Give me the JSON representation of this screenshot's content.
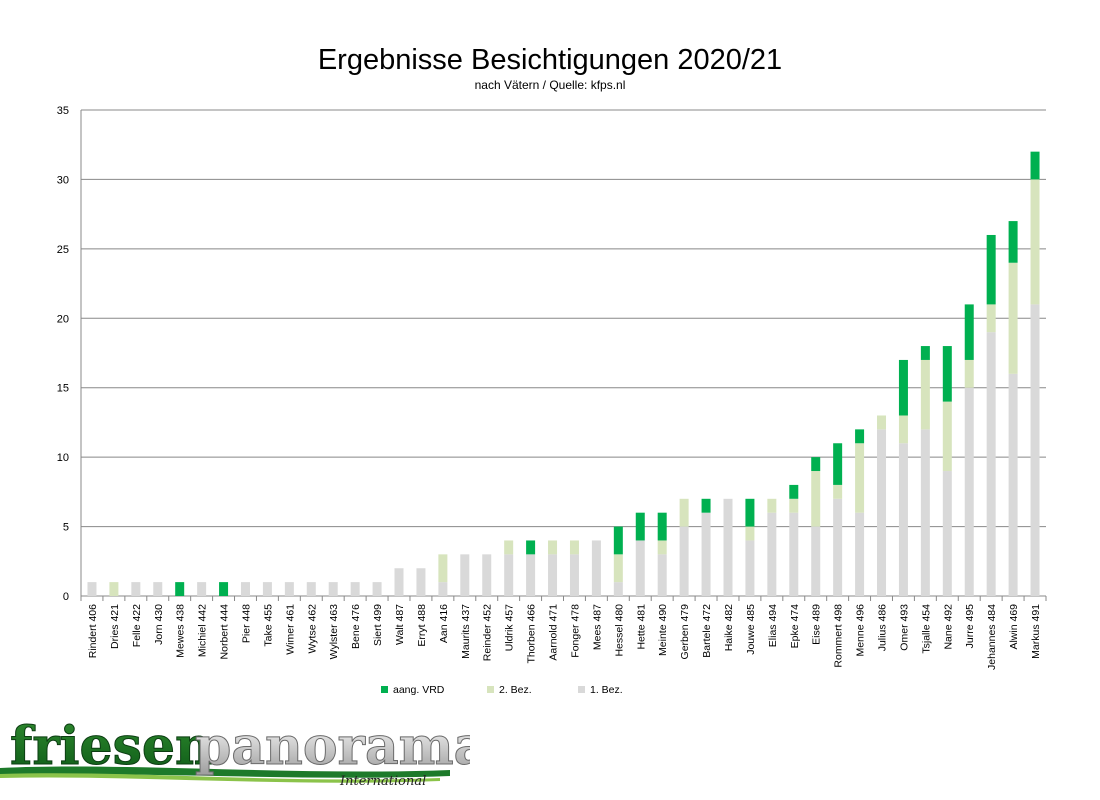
{
  "chart_data": {
    "type": "bar",
    "stacked": true,
    "title": "Ergebnisse Besichtigungen 2020/21",
    "subtitle": "nach Vätern / Quelle: kfps.nl",
    "ylim": [
      0,
      35
    ],
    "yticks": [
      0,
      5,
      10,
      15,
      20,
      25,
      30,
      35
    ],
    "grid": true,
    "legend_position": "bottom",
    "categories": [
      "Rindert 406",
      "Dries 421",
      "Felle 422",
      "Jorn 430",
      "Mewes 438",
      "Michiel 442",
      "Norbert 444",
      "Pier 448",
      "Take 455",
      "Wimer 461",
      "Wytse 462",
      "Wylster 463",
      "Bene 476",
      "Siert 499",
      "Walt 487",
      "Erryt 488",
      "Aan 416",
      "Maurits 437",
      "Reinder 452",
      "Uldrik 457",
      "Thorben 466",
      "Aarnold 471",
      "Fonger 478",
      "Mees 487",
      "Hessel 480",
      "Hette 481",
      "Meinte 490",
      "Gerben 479",
      "Bartele 472",
      "Haike 482",
      "Jouwe 485",
      "Elias 494",
      "Epke 474",
      "Eise 489",
      "Rommert 498",
      "Menne 496",
      "Julius 486",
      "Omer 493",
      "Tsjalle 454",
      "Nane 492",
      "Jurre 495",
      "Jehannes 484",
      "Alwin 469",
      "Markus 491"
    ],
    "series": [
      {
        "name": "1. Bez.",
        "color": "#d9d9d9",
        "values": [
          1,
          0,
          1,
          1,
          0,
          1,
          0,
          1,
          1,
          1,
          1,
          1,
          1,
          1,
          2,
          2,
          1,
          3,
          3,
          3,
          3,
          3,
          3,
          4,
          1,
          4,
          3,
          5,
          6,
          7,
          4,
          6,
          6,
          5,
          7,
          6,
          12,
          11,
          12,
          9,
          15,
          19,
          16,
          21
        ]
      },
      {
        "name": "2. Bez.",
        "color": "#d7e4bd",
        "values": [
          0,
          1,
          0,
          0,
          0,
          0,
          0,
          0,
          0,
          0,
          0,
          0,
          0,
          0,
          0,
          0,
          2,
          0,
          0,
          1,
          0,
          1,
          1,
          0,
          2,
          0,
          1,
          2,
          0,
          0,
          1,
          1,
          1,
          4,
          1,
          5,
          1,
          2,
          5,
          5,
          2,
          2,
          8,
          9
        ]
      },
      {
        "name": "aang. VRD",
        "color": "#00b050",
        "values": [
          0,
          0,
          0,
          0,
          1,
          0,
          1,
          0,
          0,
          0,
          0,
          0,
          0,
          0,
          0,
          0,
          0,
          0,
          0,
          0,
          1,
          0,
          0,
          0,
          2,
          2,
          2,
          0,
          1,
          0,
          2,
          0,
          1,
          1,
          3,
          1,
          0,
          4,
          1,
          4,
          4,
          5,
          3,
          2
        ]
      }
    ],
    "legend_order": [
      "aang. VRD",
      "2. Bez.",
      "1. Bez."
    ]
  },
  "logo": {
    "brand_part1": "friesen",
    "brand_part2": "panorama",
    "tagline": "International"
  }
}
